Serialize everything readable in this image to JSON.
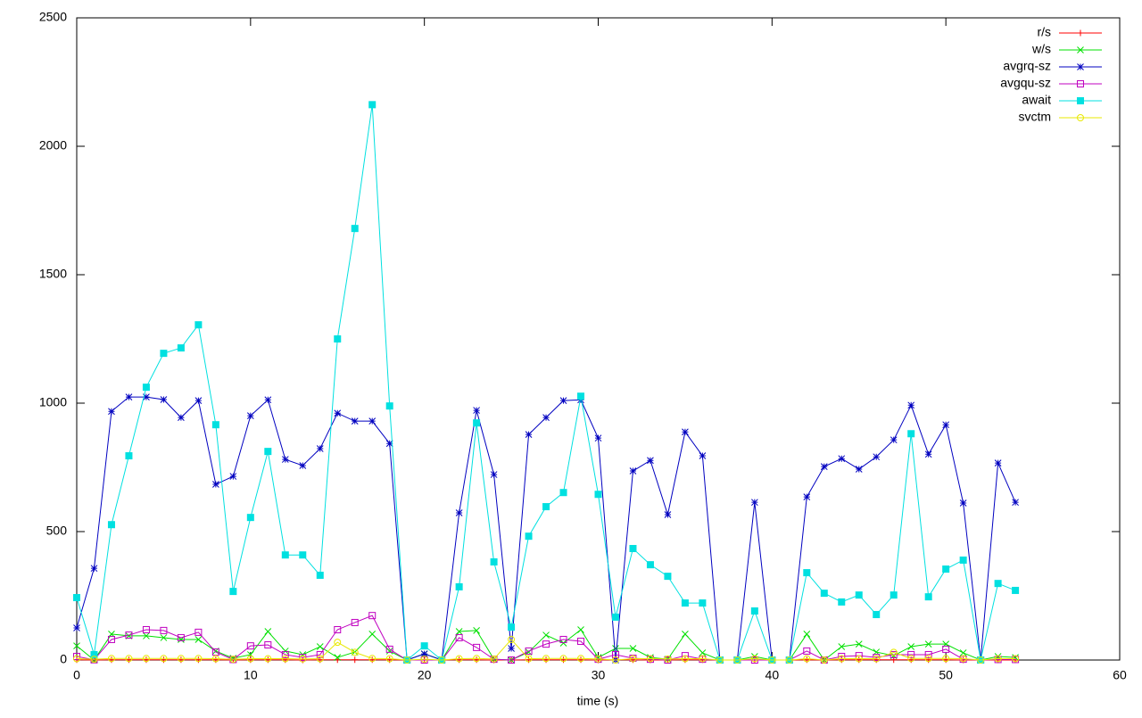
{
  "chart_data": {
    "type": "line",
    "xlabel": "time (s)",
    "x": [
      0,
      1,
      2,
      3,
      4,
      5,
      6,
      7,
      8,
      9,
      10,
      11,
      12,
      13,
      14,
      15,
      16,
      17,
      18,
      19,
      20,
      21,
      22,
      23,
      24,
      25,
      26,
      27,
      28,
      29,
      30,
      31,
      32,
      33,
      34,
      35,
      36,
      37,
      38,
      39,
      40,
      41,
      42,
      43,
      44,
      45,
      46,
      47,
      48,
      49,
      50,
      51,
      52,
      53,
      54
    ],
    "xlim": [
      0,
      60
    ],
    "xticks": [
      0,
      10,
      20,
      30,
      40,
      50,
      60
    ],
    "ylim": [
      0,
      2500
    ],
    "yticks": [
      0,
      500,
      1000,
      1500,
      2000,
      2500
    ],
    "legend": "top-right",
    "series": [
      {
        "name": "r/s",
        "color": "#ff0000",
        "marker": "plus",
        "values": [
          1,
          0,
          1,
          1,
          1,
          1,
          1,
          1,
          1,
          0,
          1,
          1,
          1,
          0,
          1,
          1,
          1,
          1,
          1,
          0,
          0,
          0,
          1,
          1,
          0,
          0,
          1,
          1,
          1,
          1,
          0,
          1,
          1,
          0,
          0,
          1,
          1,
          0,
          0,
          0,
          0,
          0,
          1,
          0,
          1,
          1,
          1,
          1,
          1,
          1,
          1,
          0,
          0,
          0,
          0
        ]
      },
      {
        "name": "w/s",
        "color": "#00e000",
        "marker": "cross",
        "values": [
          55,
          0,
          101,
          94,
          94,
          87,
          80,
          80,
          35,
          7,
          21,
          111,
          35,
          21,
          52,
          10,
          31,
          101,
          35,
          0,
          24,
          0,
          111,
          115,
          3,
          0,
          31,
          97,
          66,
          118,
          10,
          45,
          45,
          10,
          3,
          101,
          28,
          0,
          0,
          14,
          0,
          0,
          101,
          0,
          52,
          62,
          31,
          17,
          52,
          62,
          62,
          28,
          0,
          14,
          10
        ]
      },
      {
        "name": "avgrq-sz",
        "color": "#0000c0",
        "marker": "star",
        "values": [
          125,
          357,
          968,
          1024,
          1024,
          1014,
          944,
          1010,
          684,
          715,
          951,
          1013,
          781,
          757,
          823,
          961,
          930,
          930,
          843,
          0,
          24,
          0,
          573,
          972,
          722,
          45,
          878,
          944,
          1010,
          1013,
          864,
          0,
          736,
          777,
          566,
          888,
          795,
          0,
          0,
          614,
          0,
          0,
          635,
          753,
          784,
          743,
          791,
          857,
          992,
          801,
          916,
          611,
          0,
          767,
          614
        ]
      },
      {
        "name": "avgqu-sz",
        "color": "#c000c0",
        "marker": "square-open",
        "values": [
          14,
          1,
          80,
          97,
          118,
          115,
          87,
          108,
          31,
          2,
          55,
          59,
          21,
          10,
          21,
          118,
          146,
          173,
          42,
          0,
          0,
          0,
          87,
          49,
          3,
          0,
          35,
          62,
          80,
          73,
          3,
          21,
          7,
          3,
          0,
          17,
          3,
          0,
          0,
          0,
          0,
          0,
          35,
          0,
          14,
          17,
          10,
          21,
          21,
          21,
          42,
          3,
          0,
          2,
          2
        ]
      },
      {
        "name": "await",
        "color": "#00e0e0",
        "marker": "square",
        "values": [
          243,
          21,
          527,
          795,
          1062,
          1194,
          1215,
          1305,
          916,
          267,
          555,
          812,
          409,
          409,
          330,
          1250,
          1680,
          2162,
          989,
          0,
          55,
          0,
          285,
          923,
          382,
          128,
          482,
          597,
          652,
          1027,
          645,
          167,
          434,
          371,
          326,
          222,
          222,
          0,
          0,
          191,
          0,
          0,
          340,
          260,
          226,
          253,
          177,
          253,
          881,
          246,
          354,
          389,
          0,
          298,
          271
        ]
      },
      {
        "name": "svctm",
        "color": "#e8e800",
        "marker": "circle",
        "values": [
          5,
          3,
          6,
          6,
          6,
          6,
          6,
          6,
          5,
          3,
          5,
          5,
          5,
          4,
          5,
          69,
          30,
          6,
          5,
          0,
          3,
          0,
          5,
          6,
          4,
          80,
          5,
          6,
          6,
          6,
          4,
          0,
          5,
          5,
          4,
          5,
          5,
          0,
          0,
          5,
          0,
          0,
          5,
          0,
          5,
          5,
          5,
          30,
          6,
          6,
          6,
          5,
          0,
          5,
          5
        ]
      }
    ]
  }
}
